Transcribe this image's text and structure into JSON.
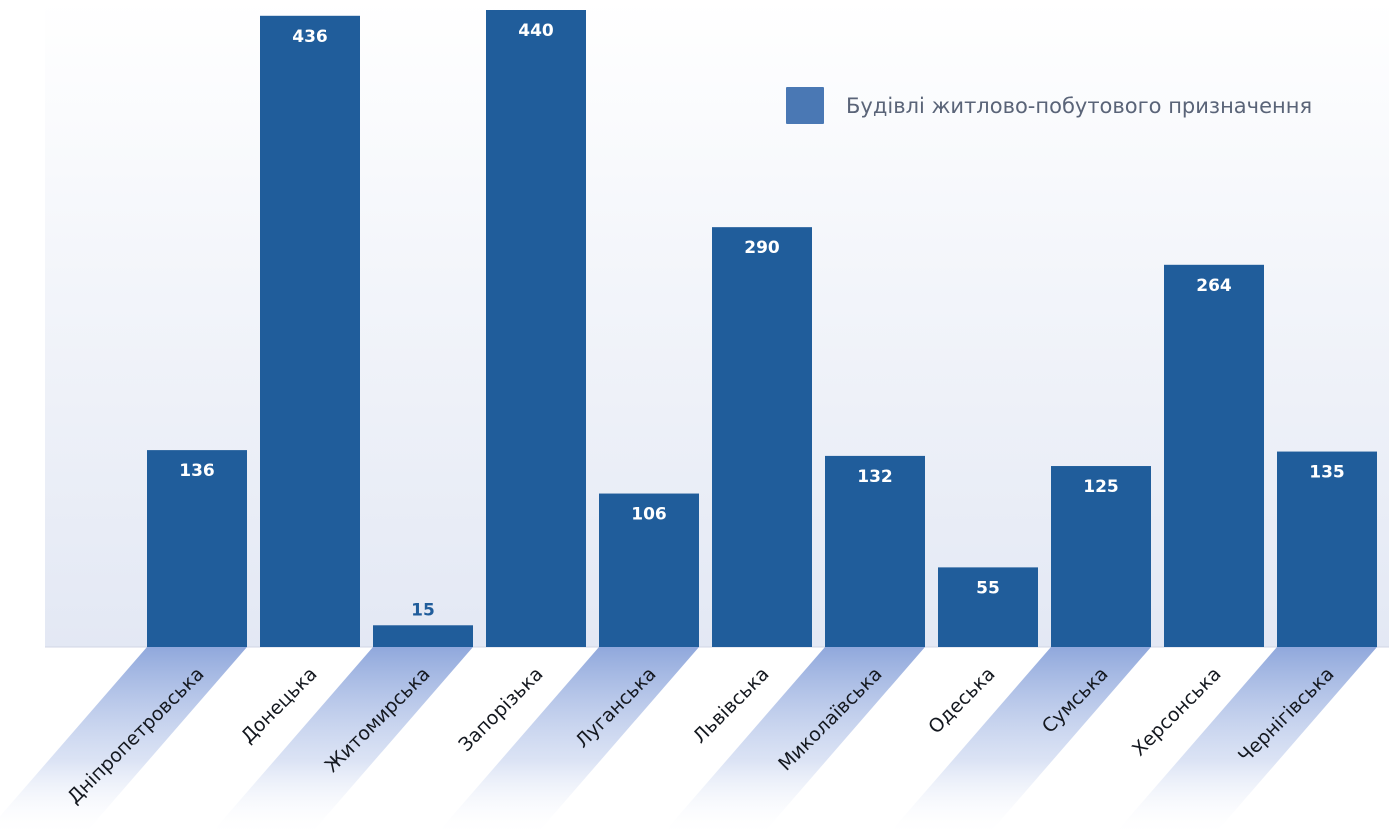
{
  "chart_data": {
    "type": "bar",
    "categories": [
      "Дніпропетровська",
      "Донецька",
      "Житомирська",
      "Запорізька",
      "Луганська",
      "Львівська",
      "Миколаївська",
      "Одеська",
      "Сумська",
      "Херсонська",
      "Чернігівська"
    ],
    "series": [
      {
        "name": "Будівлі житлово-побутового призначення",
        "values": [
          136,
          436,
          15,
          440,
          106,
          290,
          132,
          55,
          125,
          264,
          135
        ]
      }
    ],
    "title": "",
    "xlabel": "",
    "ylabel": "",
    "ylim": [
      0,
      440
    ],
    "grid": false,
    "legend": "top-right",
    "data_labels": true
  },
  "colors": {
    "bar": "#205d9b",
    "legend_swatch": "#4a78b4",
    "label_light": "#ffffff",
    "label_dark": "#205d9b",
    "plot_bg_top": "#ffffff",
    "plot_bg_bottom": "#e3e8f4",
    "category_band": "#90a8dc",
    "category_text": "#14181f",
    "legend_text": "#5a6478"
  }
}
